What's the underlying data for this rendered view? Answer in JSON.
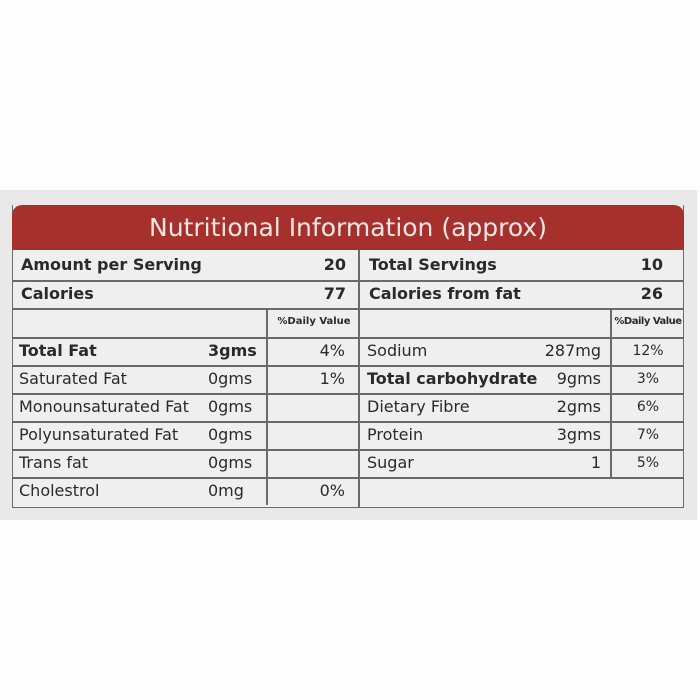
{
  "title": "Nutritional Information (approx)",
  "colors": {
    "header_bg": "#a6302c",
    "header_text": "#f7e6e4",
    "band": "#e9e9ea"
  },
  "left": {
    "amount_per_serving": {
      "label": "Amount per Serving",
      "value": "20"
    },
    "calories": {
      "label": "Calories",
      "value": "77"
    },
    "dv_header": "%Daily Value",
    "rows": [
      {
        "name": "Total Fat",
        "amount": "3gms",
        "dv": "4%",
        "bold": true
      },
      {
        "name": "Saturated Fat",
        "amount": "0gms",
        "dv": "1%"
      },
      {
        "name": "Monounsaturated Fat",
        "amount": "0gms",
        "dv": ""
      },
      {
        "name": "Polyunsaturated Fat",
        "amount": "0gms",
        "dv": ""
      },
      {
        "name": "Trans fat",
        "amount": "0gms",
        "dv": ""
      },
      {
        "name": "Cholestrol",
        "amount": "0mg",
        "dv": "0%"
      }
    ]
  },
  "right": {
    "total_servings": {
      "label": "Total Servings",
      "value": "10"
    },
    "calories_from_fat": {
      "label": "Calories from fat",
      "value": "26"
    },
    "dv_header": "%Daily Value",
    "rows": [
      {
        "name": "Sodium",
        "amount": "287mg",
        "dv": "12%"
      },
      {
        "name": "Total carbohydrate",
        "amount": "9gms",
        "dv": "3%",
        "bold": true
      },
      {
        "name": "Dietary Fibre",
        "amount": "2gms",
        "dv": "6%"
      },
      {
        "name": "Protein",
        "amount": "3gms",
        "dv": "7%"
      },
      {
        "name": "Sugar",
        "amount": "1",
        "dv": "5%"
      }
    ]
  }
}
